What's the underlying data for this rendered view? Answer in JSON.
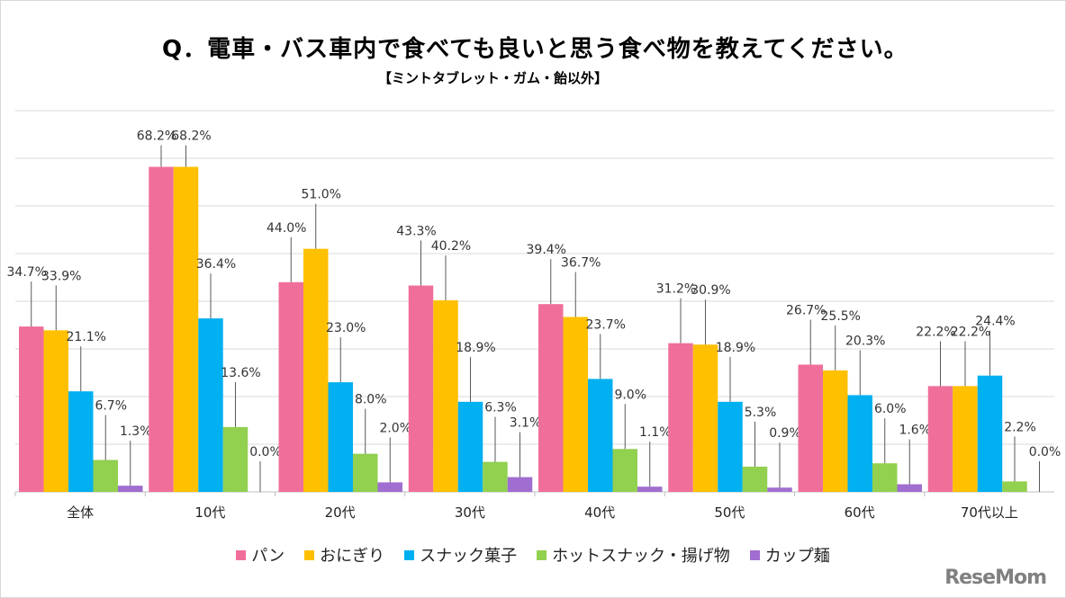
{
  "chart_data": {
    "type": "bar",
    "title": "Q．電車・バス車内で食べても良いと思う食べ物を教えてください。",
    "subtitle": "【ミントタブレット・ガム・飴以外】",
    "categories": [
      "全体",
      "10代",
      "20代",
      "30代",
      "40代",
      "50代",
      "60代",
      "70代以上"
    ],
    "series": [
      {
        "name": "パン",
        "color": "#f06f9a",
        "values": [
          34.7,
          68.2,
          44.0,
          43.3,
          39.4,
          31.2,
          26.7,
          22.2
        ]
      },
      {
        "name": "おにぎり",
        "color": "#ffc000",
        "values": [
          33.9,
          68.2,
          51.0,
          40.2,
          36.7,
          30.9,
          25.5,
          22.2
        ]
      },
      {
        "name": "スナック菓子",
        "color": "#00b0f0",
        "values": [
          21.1,
          36.4,
          23.0,
          18.9,
          23.7,
          18.9,
          20.3,
          24.4
        ]
      },
      {
        "name": "ホットスナック・揚げ物",
        "color": "#92d050",
        "values": [
          6.7,
          13.6,
          8.0,
          6.3,
          9.0,
          5.3,
          6.0,
          2.2
        ]
      },
      {
        "name": "カップ麺",
        "color": "#a06ed0",
        "values": [
          1.3,
          0.0,
          2.0,
          3.1,
          1.1,
          0.9,
          1.6,
          0.0
        ]
      }
    ],
    "ylim": [
      0,
      80
    ],
    "grid": true,
    "legend_position": "bottom",
    "value_format": "percent"
  },
  "logo": "ReseMom"
}
